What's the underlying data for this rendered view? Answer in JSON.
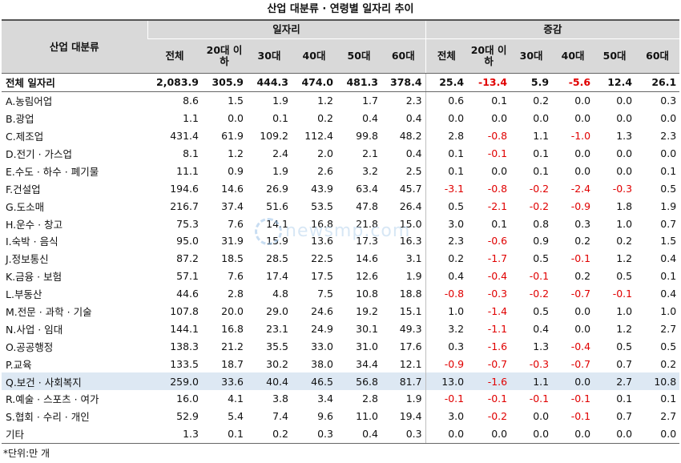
{
  "title": "산업 대분류 · 연령별 일자리 추이",
  "header": {
    "industry_label": "산업 대분류",
    "group_jobs": "일자리",
    "group_change": "증감",
    "cols": [
      "전체",
      "20대 이하",
      "30대",
      "40대",
      "50대",
      "60대",
      "전체",
      "20대 이하",
      "30대",
      "40대",
      "50대",
      "60대"
    ]
  },
  "rows": [
    {
      "name": "전체 일자리",
      "vals": [
        "2,083.9",
        "305.9",
        "444.3",
        "474.0",
        "481.3",
        "378.4",
        "25.4",
        "-13.4",
        "5.9",
        "-5.6",
        "12.4",
        "26.1"
      ]
    },
    {
      "name": "A.농림어업",
      "vals": [
        "8.6",
        "1.5",
        "1.9",
        "1.2",
        "1.7",
        "2.3",
        "0.6",
        "0.1",
        "0.2",
        "0.0",
        "0.0",
        "0.3"
      ]
    },
    {
      "name": "B.광업",
      "vals": [
        "1.1",
        "0.0",
        "0.1",
        "0.2",
        "0.4",
        "0.4",
        "0.0",
        "0.0",
        "0.0",
        "0.0",
        "0.0",
        "0.0"
      ]
    },
    {
      "name": "C.제조업",
      "vals": [
        "431.4",
        "61.9",
        "109.2",
        "112.4",
        "99.8",
        "48.2",
        "2.8",
        "-0.8",
        "1.1",
        "-1.0",
        "1.3",
        "2.3"
      ]
    },
    {
      "name": "D.전기 · 가스업",
      "vals": [
        "8.1",
        "1.2",
        "2.4",
        "2.0",
        "2.1",
        "0.4",
        "0.1",
        "-0.1",
        "0.1",
        "0.0",
        "0.0",
        "0.0"
      ]
    },
    {
      "name": "E.수도 · 하수 · 폐기물",
      "vals": [
        "11.1",
        "0.9",
        "1.9",
        "2.6",
        "3.2",
        "2.5",
        "0.1",
        "0.0",
        "0.1",
        "0.0",
        "0.0",
        "0.1"
      ]
    },
    {
      "name": "F.건설업",
      "vals": [
        "194.6",
        "14.6",
        "26.9",
        "43.9",
        "63.4",
        "45.7",
        "-3.1",
        "-0.8",
        "-0.2",
        "-2.4",
        "-0.3",
        "0.5"
      ]
    },
    {
      "name": "G.도소매",
      "vals": [
        "216.7",
        "37.4",
        "51.6",
        "53.5",
        "47.8",
        "26.4",
        "0.5",
        "-2.1",
        "-0.2",
        "-0.9",
        "1.8",
        "1.9"
      ]
    },
    {
      "name": "H.운수 · 창고",
      "vals": [
        "75.3",
        "7.6",
        "14.1",
        "16.8",
        "21.8",
        "15.0",
        "3.0",
        "0.1",
        "0.8",
        "0.3",
        "1.0",
        "0.7"
      ]
    },
    {
      "name": "I.숙박 · 음식",
      "vals": [
        "95.0",
        "31.9",
        "15.9",
        "13.6",
        "17.3",
        "16.3",
        "2.3",
        "-0.6",
        "0.9",
        "0.2",
        "0.2",
        "1.5"
      ]
    },
    {
      "name": "J.정보통신",
      "vals": [
        "87.2",
        "18.5",
        "28.5",
        "22.5",
        "14.6",
        "3.1",
        "0.2",
        "-1.7",
        "0.5",
        "-0.1",
        "1.2",
        "0.4"
      ]
    },
    {
      "name": "K.금융 · 보험",
      "vals": [
        "57.1",
        "7.6",
        "17.4",
        "17.5",
        "12.6",
        "1.9",
        "0.4",
        "-0.4",
        "-0.1",
        "0.2",
        "0.5",
        "0.1"
      ]
    },
    {
      "name": "L.부동산",
      "vals": [
        "44.6",
        "2.8",
        "4.8",
        "7.5",
        "10.8",
        "18.8",
        "-0.8",
        "-0.3",
        "-0.2",
        "-0.7",
        "-0.1",
        "0.4"
      ]
    },
    {
      "name": "M.전문 · 과학 · 기술",
      "vals": [
        "107.8",
        "20.0",
        "29.0",
        "24.6",
        "19.2",
        "15.1",
        "1.0",
        "-1.4",
        "0.5",
        "0.0",
        "1.0",
        "1.0"
      ]
    },
    {
      "name": "N.사업 · 임대",
      "vals": [
        "144.1",
        "16.8",
        "23.1",
        "24.9",
        "30.1",
        "49.3",
        "3.2",
        "-1.1",
        "0.4",
        "0.0",
        "1.2",
        "2.7"
      ]
    },
    {
      "name": "O.공공행정",
      "vals": [
        "138.3",
        "21.2",
        "35.5",
        "33.0",
        "31.0",
        "17.6",
        "0.3",
        "-1.6",
        "1.3",
        "-0.4",
        "0.5",
        "0.5"
      ]
    },
    {
      "name": "P.교육",
      "vals": [
        "133.5",
        "18.7",
        "30.2",
        "38.0",
        "34.4",
        "12.1",
        "-0.9",
        "-0.7",
        "-0.3",
        "-0.7",
        "0.7",
        "0.2"
      ]
    },
    {
      "name": "Q.보건 · 사회복지",
      "vals": [
        "259.0",
        "33.6",
        "40.4",
        "46.5",
        "56.8",
        "81.7",
        "13.0",
        "-1.6",
        "1.1",
        "0.0",
        "2.7",
        "10.8"
      ],
      "highlight": true
    },
    {
      "name": "R.예술 · 스포츠 · 여가",
      "vals": [
        "16.0",
        "4.1",
        "3.8",
        "3.4",
        "2.8",
        "1.9",
        "-0.1",
        "-0.1",
        "-0.1",
        "-0.1",
        "0.1",
        "0.1"
      ]
    },
    {
      "name": "S.협회 · 수리 · 개인",
      "vals": [
        "52.9",
        "5.4",
        "7.4",
        "9.6",
        "11.0",
        "19.4",
        "3.0",
        "-0.2",
        "0.0",
        "-0.1",
        "0.7",
        "2.7"
      ]
    },
    {
      "name": "기타",
      "vals": [
        "1.3",
        "0.1",
        "0.2",
        "0.3",
        "0.4",
        "0.3",
        "0.0",
        "0.0",
        "0.0",
        "0.0",
        "0.0",
        "0.0"
      ]
    }
  ],
  "note": "*단위:만 개",
  "watermark": "newsmp.com",
  "colors": {
    "negative": "#e00000",
    "header_bg": "#d9d9d9",
    "highlight_bg": "#dde8f3"
  }
}
